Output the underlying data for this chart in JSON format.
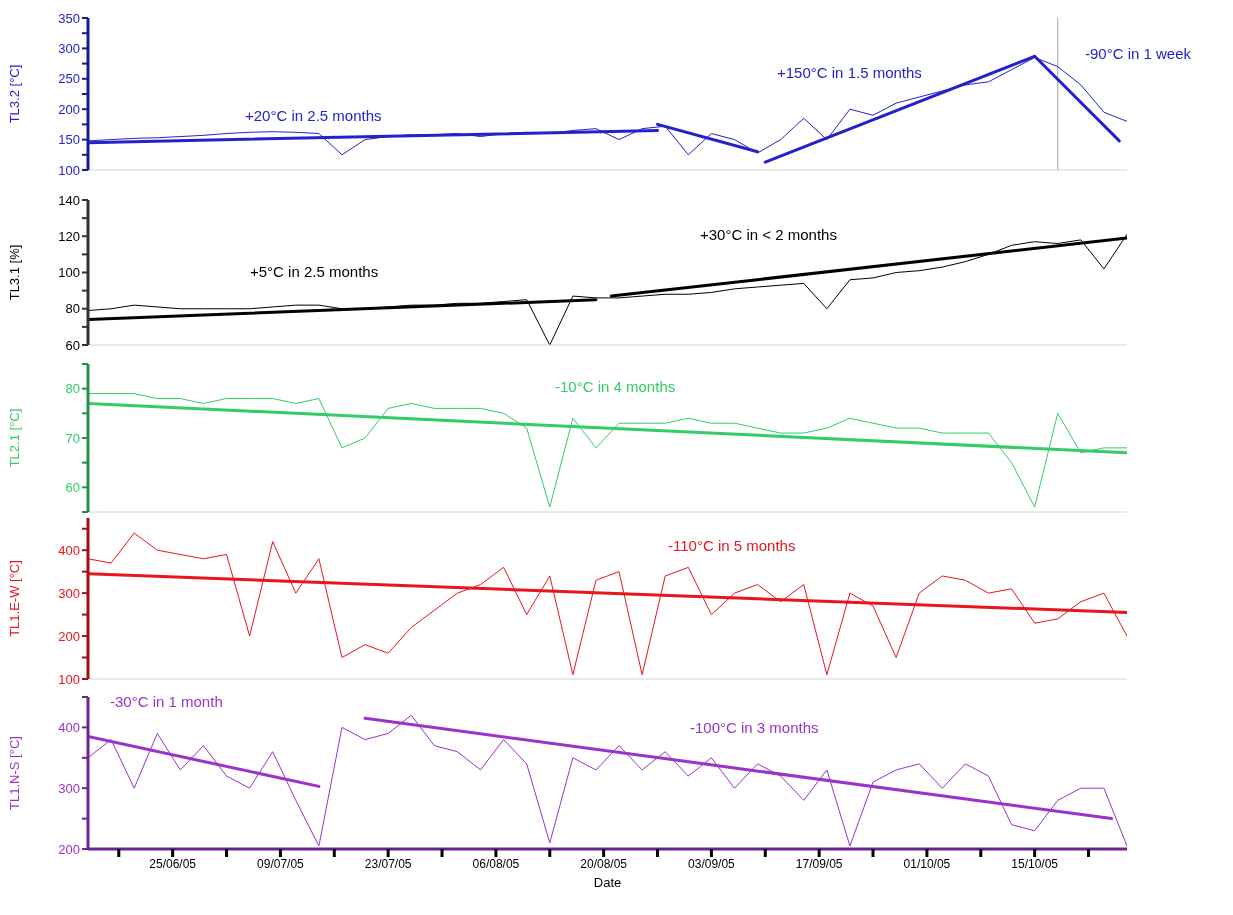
{
  "chart_data": [
    {
      "type": "line",
      "ylabel": "TL3.2 [°C]",
      "xlim": [
        "--06-14",
        "--10-27"
      ],
      "ylim": [
        100,
        350
      ],
      "yticks": [
        100,
        {
          "value": 125,
          "label": null
        },
        150,
        {
          "value": 175,
          "label": null
        },
        200,
        {
          "value": 225,
          "label": null
        },
        250,
        {
          "value": 275,
          "label": null
        },
        300,
        {
          "value": 325,
          "label": null
        },
        350
      ],
      "tick_labels": "y",
      "x": [
        "--06-14",
        "--06-17",
        "--06-20",
        "--06-23",
        "--06-26",
        "--06-29",
        "--07-02",
        "--07-05",
        "--07-08",
        "--07-11",
        "--07-14",
        "--07-17",
        "--07-20",
        "--07-23",
        "--07-26",
        "--07-29",
        "--08-01",
        "--08-04",
        "--08-07",
        "--08-10",
        "--08-13",
        "--08-16",
        "--08-19",
        "--08-22",
        "--08-25",
        "--08-28",
        "--08-31",
        "--09-03",
        "--09-06",
        "--09-09",
        "--09-12",
        "--09-15",
        "--09-18",
        "--09-21",
        "--09-24",
        "--09-27",
        "--09-30",
        "--10-03",
        "--10-06",
        "--10-09",
        "--10-12",
        "--10-15",
        "--10-18",
        "--10-21",
        "--10-24",
        "--10-27"
      ],
      "series": [
        {
          "color": "#2222cc",
          "values": [
            148,
            150,
            152,
            153,
            155,
            157,
            160,
            162,
            163,
            162,
            160,
            125,
            150,
            155,
            158,
            158,
            160,
            155,
            160,
            162,
            160,
            165,
            168,
            150,
            168,
            172,
            125,
            160,
            150,
            128,
            150,
            185,
            150,
            200,
            190,
            210,
            220,
            230,
            240,
            245,
            265,
            285,
            270,
            240,
            195,
            180
          ]
        },
        {
          "type": "line",
          "color": "#2222cc",
          "x": [
            "--06-14",
            "--08-27"
          ],
          "values": [
            145,
            165
          ]
        },
        {
          "type": "line",
          "color": "#2222cc",
          "x": [
            "--08-27",
            "--09-09"
          ],
          "values": [
            175,
            130
          ]
        },
        {
          "type": "line",
          "color": "#2222cc",
          "x": [
            "--09-10",
            "--10-15"
          ],
          "values": [
            113,
            287
          ]
        },
        {
          "type": "line",
          "color": "#2222cc",
          "x": [
            "--10-15",
            "--10-26"
          ],
          "values": [
            287,
            148
          ]
        }
      ],
      "ref_lines": [
        {
          "axis": "x",
          "value": "--10-18",
          "color": "#a0a0a0"
        }
      ],
      "annotations": [
        "+20°C in 2.5 months",
        "+150°C in 1.5 months",
        "-90°C in 1 week"
      ]
    },
    {
      "type": "line",
      "ylabel": "TL3.1 [%]",
      "xlim": [
        "--06-14",
        "--10-27"
      ],
      "ylim": [
        60,
        140
      ],
      "yticks": [
        60,
        {
          "value": 70,
          "label": null
        },
        80,
        {
          "value": 90,
          "label": null
        },
        100,
        {
          "value": 110,
          "label": null
        },
        120,
        {
          "value": 130,
          "label": null
        },
        140
      ],
      "tick_labels": "y",
      "x": [
        "--06-14",
        "--06-17",
        "--06-20",
        "--06-23",
        "--06-26",
        "--06-29",
        "--07-02",
        "--07-05",
        "--07-08",
        "--07-11",
        "--07-14",
        "--07-17",
        "--07-20",
        "--07-23",
        "--07-26",
        "--07-29",
        "--08-01",
        "--08-04",
        "--08-07",
        "--08-10",
        "--08-13",
        "--08-16",
        "--08-19",
        "--08-22",
        "--08-25",
        "--08-28",
        "--08-31",
        "--09-03",
        "--09-06",
        "--09-09",
        "--09-12",
        "--09-15",
        "--09-18",
        "--09-21",
        "--09-24",
        "--09-27",
        "--09-30",
        "--10-03",
        "--10-06",
        "--10-09",
        "--10-12",
        "--10-15",
        "--10-18",
        "--10-21",
        "--10-24",
        "--10-27"
      ],
      "series": [
        {
          "color": "#000000",
          "values": [
            79,
            80,
            82,
            81,
            80,
            80,
            80,
            80,
            81,
            82,
            82,
            80,
            80,
            81,
            82,
            82,
            83,
            83,
            84,
            85,
            60,
            87,
            86,
            86,
            87,
            88,
            88,
            89,
            91,
            92,
            93,
            94,
            80,
            96,
            97,
            100,
            101,
            103,
            106,
            110,
            115,
            117,
            116,
            118,
            102,
            121
          ]
        },
        {
          "type": "line",
          "color": "#000000",
          "x": [
            "--06-14",
            "--08-19"
          ],
          "values": [
            74,
            85
          ]
        },
        {
          "type": "line",
          "color": "#000000",
          "x": [
            "--08-21",
            "--10-27"
          ],
          "values": [
            87,
            119
          ]
        }
      ],
      "annotations": [
        "+5°C in 2.5 months",
        "+30°C in < 2 months"
      ]
    },
    {
      "type": "line",
      "ylabel": "TL2.1 [°C]",
      "xlim": [
        "--06-14",
        "--10-27"
      ],
      "ylim": [
        55,
        85
      ],
      "yticks": [
        {
          "value": 55,
          "label": null
        },
        60,
        {
          "value": 65,
          "label": null
        },
        70,
        {
          "value": 75,
          "label": null
        },
        80,
        {
          "value": 85,
          "label": null
        }
      ],
      "tick_labels": "y",
      "x": [
        "--06-14",
        "--06-17",
        "--06-20",
        "--06-23",
        "--06-26",
        "--06-29",
        "--07-02",
        "--07-05",
        "--07-08",
        "--07-11",
        "--07-14",
        "--07-17",
        "--07-20",
        "--07-23",
        "--07-26",
        "--07-29",
        "--08-01",
        "--08-04",
        "--08-07",
        "--08-10",
        "--08-13",
        "--08-16",
        "--08-19",
        "--08-22",
        "--08-25",
        "--08-28",
        "--08-31",
        "--09-03",
        "--09-06",
        "--09-09",
        "--09-12",
        "--09-15",
        "--09-18",
        "--09-21",
        "--09-24",
        "--09-27",
        "--09-30",
        "--10-03",
        "--10-06",
        "--10-09",
        "--10-12",
        "--10-15",
        "--10-18",
        "--10-21",
        "--10-24",
        "--10-27"
      ],
      "series": [
        {
          "color": "#33cc66",
          "values": [
            79,
            79,
            79,
            78,
            78,
            77,
            78,
            78,
            78,
            77,
            78,
            68,
            70,
            76,
            77,
            76,
            76,
            76,
            75,
            72,
            56,
            74,
            68,
            73,
            73,
            73,
            74,
            73,
            73,
            72,
            71,
            71,
            72,
            74,
            73,
            72,
            72,
            71,
            71,
            71,
            65,
            56,
            75,
            67,
            68,
            68
          ]
        },
        {
          "type": "line",
          "color": "#33cc66",
          "x": [
            "--06-14",
            "--10-27"
          ],
          "values": [
            77,
            67
          ]
        }
      ],
      "annotations": [
        "-10°C in 4 months"
      ]
    },
    {
      "type": "line",
      "ylabel": "TL1.E-W [°C]",
      "xlim": [
        "--06-14",
        "--10-27"
      ],
      "ylim": [
        100,
        475
      ],
      "yticks": [
        100,
        {
          "value": 150,
          "label": null
        },
        200,
        {
          "value": 250,
          "label": null
        },
        300,
        {
          "value": 350,
          "label": null
        },
        400,
        {
          "value": 450,
          "label": null
        }
      ],
      "tick_labels": "y",
      "x": [
        "--06-14",
        "--06-17",
        "--06-20",
        "--06-23",
        "--06-26",
        "--06-29",
        "--07-02",
        "--07-05",
        "--07-08",
        "--07-11",
        "--07-14",
        "--07-17",
        "--07-20",
        "--07-23",
        "--07-26",
        "--07-29",
        "--08-01",
        "--08-04",
        "--08-07",
        "--08-10",
        "--08-13",
        "--08-16",
        "--08-19",
        "--08-22",
        "--08-25",
        "--08-28",
        "--08-31",
        "--09-03",
        "--09-06",
        "--09-09",
        "--09-12",
        "--09-15",
        "--09-18",
        "--09-21",
        "--09-24",
        "--09-27",
        "--09-30",
        "--10-03",
        "--10-06",
        "--10-09",
        "--10-12",
        "--10-15",
        "--10-18",
        "--10-21",
        "--10-24",
        "--10-27"
      ],
      "series": [
        {
          "color": "#e8141e",
          "values": [
            380,
            370,
            440,
            400,
            390,
            380,
            390,
            200,
            420,
            300,
            380,
            150,
            180,
            160,
            220,
            260,
            300,
            320,
            360,
            250,
            340,
            110,
            330,
            350,
            110,
            340,
            360,
            250,
            300,
            320,
            280,
            320,
            110,
            300,
            270,
            150,
            300,
            340,
            330,
            300,
            310,
            230,
            240,
            280,
            300,
            200
          ]
        },
        {
          "type": "line",
          "color": "#e8141e",
          "x": [
            "--06-14",
            "--10-27"
          ],
          "values": [
            345,
            255
          ]
        }
      ],
      "annotations": [
        "-110°C in 5 months"
      ]
    },
    {
      "type": "line",
      "ylabel": "TL1.N-S [°C]",
      "xlabel": "Date",
      "xlim": [
        "--06-14",
        "--10-27"
      ],
      "ylim": [
        200,
        450
      ],
      "yticks": [
        200,
        {
          "value": 250,
          "label": null
        },
        300,
        {
          "value": 350,
          "label": null
        },
        400,
        {
          "value": 450,
          "label": null
        }
      ],
      "xticks": [
        {
          "value": "--06-18",
          "label": null
        },
        {
          "value": "--06-25",
          "label": "25/06/05"
        },
        {
          "value": "--07-02",
          "label": null
        },
        {
          "value": "--07-09",
          "label": "09/07/05"
        },
        {
          "value": "--07-16",
          "label": null
        },
        {
          "value": "--07-23",
          "label": "23/07/05"
        },
        {
          "value": "--07-30",
          "label": null
        },
        {
          "value": "--08-06",
          "label": "06/08/05"
        },
        {
          "value": "--08-13",
          "label": null
        },
        {
          "value": "--08-20",
          "label": "20/08/05"
        },
        {
          "value": "--08-27",
          "label": null
        },
        {
          "value": "--09-03",
          "label": "03/09/05"
        },
        {
          "value": "--09-10",
          "label": null
        },
        {
          "value": "--09-17",
          "label": "17/09/05"
        },
        {
          "value": "--09-24",
          "label": null
        },
        {
          "value": "--10-01",
          "label": "01/10/05"
        },
        {
          "value": "--10-08",
          "label": null
        },
        {
          "value": "--10-15",
          "label": "15/10/05"
        },
        {
          "value": "--10-22",
          "label": null
        }
      ],
      "x": [
        "--06-14",
        "--06-17",
        "--06-20",
        "--06-23",
        "--06-26",
        "--06-29",
        "--07-02",
        "--07-05",
        "--07-08",
        "--07-11",
        "--07-14",
        "--07-17",
        "--07-20",
        "--07-23",
        "--07-26",
        "--07-29",
        "--08-01",
        "--08-04",
        "--08-07",
        "--08-10",
        "--08-13",
        "--08-16",
        "--08-19",
        "--08-22",
        "--08-25",
        "--08-28",
        "--08-31",
        "--09-03",
        "--09-06",
        "--09-09",
        "--09-12",
        "--09-15",
        "--09-18",
        "--09-21",
        "--09-24",
        "--09-27",
        "--09-30",
        "--10-03",
        "--10-06",
        "--10-09",
        "--10-12",
        "--10-15",
        "--10-18",
        "--10-21",
        "--10-24",
        "--10-27"
      ],
      "series": [
        {
          "color": "#9933cc",
          "values": [
            350,
            380,
            300,
            390,
            330,
            370,
            320,
            300,
            360,
            280,
            205,
            400,
            380,
            390,
            420,
            370,
            360,
            330,
            380,
            340,
            210,
            350,
            330,
            370,
            330,
            360,
            320,
            350,
            300,
            340,
            320,
            280,
            330,
            205,
            310,
            330,
            340,
            300,
            340,
            320,
            240,
            230,
            280,
            300,
            300,
            205
          ]
        },
        {
          "type": "line",
          "color": "#9933cc",
          "x": [
            "--06-14",
            "--07-14"
          ],
          "values": [
            385,
            303
          ]
        },
        {
          "type": "line",
          "color": "#9933cc",
          "x": [
            "--07-20",
            "--10-25"
          ],
          "values": [
            415,
            250
          ]
        }
      ],
      "annotations": [
        "-30°C in 1 month",
        "-100°C in 3 months"
      ]
    }
  ]
}
